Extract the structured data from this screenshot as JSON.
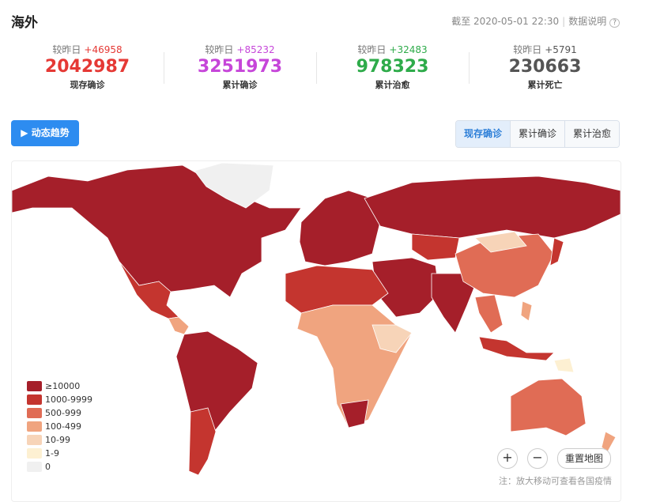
{
  "header": {
    "title": "海外",
    "timestamp": "截至 2020-05-01 22:30",
    "info_link": "数据说明"
  },
  "stats": [
    {
      "delta_label": "较昨日",
      "delta": "+46958",
      "value": "2042987",
      "name": "现存确诊",
      "color": "#e53935"
    },
    {
      "delta_label": "较昨日",
      "delta": "+85232",
      "value": "3251973",
      "name": "累计确诊",
      "color": "#c646d9"
    },
    {
      "delta_label": "较昨日",
      "delta": "+32483",
      "value": "978323",
      "name": "累计治愈",
      "color": "#2eab4a"
    },
    {
      "delta_label": "较昨日",
      "delta": "+5791",
      "value": "230663",
      "name": "累计死亡",
      "color": "#555555"
    }
  ],
  "trend_button": "动态趋势",
  "tabs": [
    "现存确诊",
    "累计确诊",
    "累计治愈"
  ],
  "legend": {
    "items": [
      {
        "label": "≥10000",
        "color": "#a51f2a"
      },
      {
        "label": "1000-9999",
        "color": "#c4352f"
      },
      {
        "label": "500-999",
        "color": "#e06c55"
      },
      {
        "label": "100-499",
        "color": "#f0a47f"
      },
      {
        "label": "10-99",
        "color": "#f7d4b8"
      },
      {
        "label": "1-9",
        "color": "#fdf0d2"
      },
      {
        "label": "0",
        "color": "#f0f0f0"
      }
    ]
  },
  "map_controls": {
    "reset": "重置地图"
  },
  "note": "注：放大移动可查看各国疫情"
}
